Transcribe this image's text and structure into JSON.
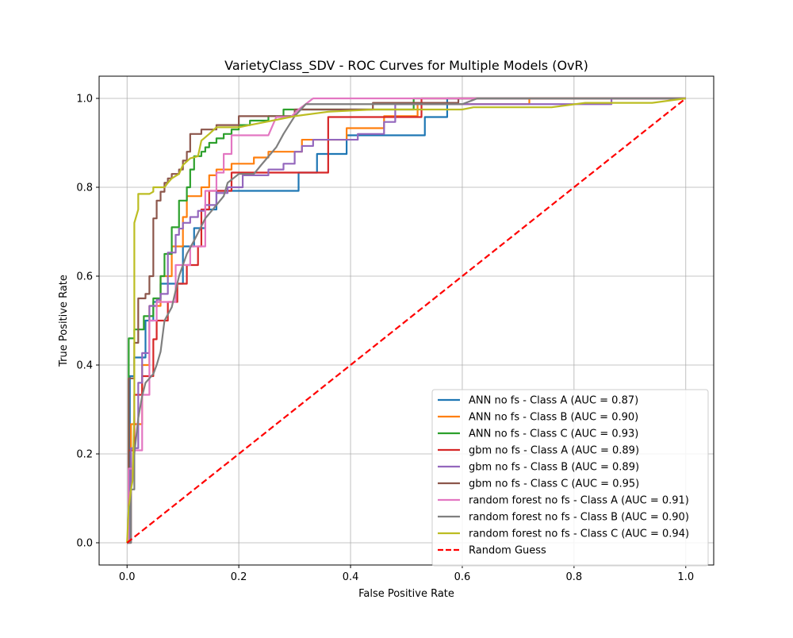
{
  "chart_data": {
    "type": "line",
    "title": "VarietyClass_SDV - ROC Curves for Multiple Models (OvR)",
    "xlabel": "False Positive Rate",
    "ylabel": "True Positive Rate",
    "xlim": [
      -0.05,
      1.05
    ],
    "ylim": [
      -0.05,
      1.05
    ],
    "xticks": [
      0.0,
      0.2,
      0.4,
      0.6,
      0.8,
      1.0
    ],
    "yticks": [
      0.0,
      0.2,
      0.4,
      0.6,
      0.8,
      1.0
    ],
    "xtick_labels": [
      "0.0",
      "0.2",
      "0.4",
      "0.6",
      "0.8",
      "1.0"
    ],
    "ytick_labels": [
      "0.0",
      "0.2",
      "0.4",
      "0.6",
      "0.8",
      "1.0"
    ],
    "grid": true,
    "legend_position": "lower-right",
    "series": [
      {
        "name": "ANN no fs - Class A (AUC = 0.87)",
        "color": "#1f77b4",
        "dash": "solid",
        "x": [
          0,
          0.005,
          0.005,
          0.013,
          0.013,
          0.033,
          0.033,
          0.047,
          0.047,
          0.06,
          0.06,
          0.1,
          0.1,
          0.12,
          0.12,
          0.14,
          0.14,
          0.16,
          0.16,
          0.307,
          0.307,
          0.34,
          0.34,
          0.393,
          0.393,
          0.533,
          0.533,
          0.573,
          0.573,
          1.0
        ],
        "y": [
          0,
          0,
          0.375,
          0.375,
          0.417,
          0.417,
          0.5,
          0.5,
          0.542,
          0.542,
          0.583,
          0.583,
          0.667,
          0.667,
          0.708,
          0.708,
          0.75,
          0.75,
          0.792,
          0.792,
          0.833,
          0.833,
          0.875,
          0.875,
          0.917,
          0.917,
          0.958,
          0.958,
          1.0,
          1.0
        ]
      },
      {
        "name": "ANN no fs - Class B (AUC = 0.90)",
        "color": "#ff7f0e",
        "dash": "solid",
        "x": [
          0,
          0.007,
          0.007,
          0.027,
          0.027,
          0.04,
          0.04,
          0.06,
          0.06,
          0.08,
          0.08,
          0.1,
          0.1,
          0.107,
          0.107,
          0.133,
          0.133,
          0.147,
          0.147,
          0.16,
          0.16,
          0.187,
          0.187,
          0.227,
          0.227,
          0.253,
          0.253,
          0.313,
          0.313,
          0.393,
          0.393,
          0.46,
          0.46,
          0.52,
          0.52,
          0.72,
          0.72,
          1.0
        ],
        "y": [
          0,
          0,
          0.267,
          0.267,
          0.4,
          0.4,
          0.533,
          0.533,
          0.6,
          0.6,
          0.667,
          0.667,
          0.733,
          0.733,
          0.78,
          0.78,
          0.8,
          0.8,
          0.827,
          0.827,
          0.84,
          0.84,
          0.853,
          0.853,
          0.867,
          0.867,
          0.88,
          0.88,
          0.907,
          0.907,
          0.933,
          0.933,
          0.96,
          0.96,
          0.987,
          0.987,
          1.0,
          1.0
        ]
      },
      {
        "name": "ANN no fs - Class C (AUC = 0.93)",
        "color": "#2ca02c",
        "dash": "solid",
        "x": [
          0,
          0.003,
          0.003,
          0.013,
          0.013,
          0.03,
          0.03,
          0.047,
          0.047,
          0.06,
          0.06,
          0.067,
          0.067,
          0.08,
          0.08,
          0.093,
          0.093,
          0.107,
          0.107,
          0.113,
          0.113,
          0.12,
          0.12,
          0.133,
          0.133,
          0.14,
          0.14,
          0.147,
          0.147,
          0.16,
          0.16,
          0.173,
          0.173,
          0.187,
          0.187,
          0.2,
          0.2,
          0.22,
          0.22,
          0.253,
          0.253,
          0.28,
          0.28,
          0.513,
          0.513,
          1.0
        ],
        "y": [
          0,
          0,
          0.46,
          0.46,
          0.48,
          0.48,
          0.51,
          0.51,
          0.55,
          0.55,
          0.6,
          0.6,
          0.65,
          0.65,
          0.71,
          0.71,
          0.77,
          0.77,
          0.8,
          0.8,
          0.84,
          0.84,
          0.87,
          0.87,
          0.88,
          0.88,
          0.89,
          0.89,
          0.9,
          0.9,
          0.91,
          0.91,
          0.92,
          0.92,
          0.93,
          0.93,
          0.94,
          0.94,
          0.95,
          0.95,
          0.96,
          0.96,
          0.975,
          0.975,
          1.0,
          1.0
        ]
      },
      {
        "name": "gbm no fs - Class A (AUC = 0.89)",
        "color": "#d62728",
        "dash": "solid",
        "x": [
          0,
          0.003,
          0.003,
          0.013,
          0.013,
          0.027,
          0.027,
          0.047,
          0.047,
          0.053,
          0.053,
          0.073,
          0.073,
          0.09,
          0.09,
          0.107,
          0.107,
          0.127,
          0.127,
          0.133,
          0.133,
          0.147,
          0.147,
          0.187,
          0.187,
          0.24,
          0.24,
          0.28,
          0.28,
          0.36,
          0.36,
          0.527,
          0.527,
          1.0
        ],
        "y": [
          0,
          0,
          0.208,
          0.208,
          0.333,
          0.333,
          0.375,
          0.375,
          0.458,
          0.458,
          0.5,
          0.5,
          0.542,
          0.542,
          0.583,
          0.583,
          0.625,
          0.625,
          0.667,
          0.667,
          0.75,
          0.75,
          0.792,
          0.792,
          0.833,
          0.833,
          0.833,
          0.833,
          0.833,
          0.833,
          0.958,
          0.958,
          1.0,
          1.0
        ]
      },
      {
        "name": "gbm no fs - Class B (AUC = 0.89)",
        "color": "#9467bd",
        "dash": "solid",
        "x": [
          0,
          0.007,
          0.007,
          0.02,
          0.02,
          0.027,
          0.027,
          0.04,
          0.04,
          0.053,
          0.053,
          0.06,
          0.06,
          0.073,
          0.073,
          0.087,
          0.087,
          0.093,
          0.093,
          0.1,
          0.1,
          0.113,
          0.113,
          0.127,
          0.127,
          0.14,
          0.14,
          0.16,
          0.16,
          0.18,
          0.18,
          0.207,
          0.207,
          0.253,
          0.253,
          0.28,
          0.28,
          0.3,
          0.3,
          0.313,
          0.313,
          0.333,
          0.333,
          0.413,
          0.413,
          0.46,
          0.46,
          0.48,
          0.48,
          0.867,
          0.867,
          1.0
        ],
        "y": [
          0,
          0,
          0.213,
          0.213,
          0.36,
          0.36,
          0.427,
          0.427,
          0.533,
          0.533,
          0.547,
          0.547,
          0.56,
          0.56,
          0.653,
          0.653,
          0.693,
          0.693,
          0.707,
          0.707,
          0.72,
          0.72,
          0.733,
          0.733,
          0.747,
          0.747,
          0.76,
          0.76,
          0.787,
          0.787,
          0.8,
          0.8,
          0.827,
          0.827,
          0.84,
          0.84,
          0.853,
          0.853,
          0.88,
          0.88,
          0.893,
          0.893,
          0.907,
          0.907,
          0.92,
          0.92,
          0.947,
          0.947,
          0.987,
          0.987,
          1.0,
          1.0
        ]
      },
      {
        "name": "gbm no fs - Class C (AUC = 0.95)",
        "color": "#8c564b",
        "dash": "solid",
        "x": [
          0,
          0.003,
          0.003,
          0.013,
          0.013,
          0.02,
          0.02,
          0.033,
          0.033,
          0.04,
          0.04,
          0.047,
          0.047,
          0.053,
          0.053,
          0.06,
          0.06,
          0.067,
          0.067,
          0.073,
          0.073,
          0.08,
          0.08,
          0.093,
          0.093,
          0.1,
          0.1,
          0.107,
          0.107,
          0.113,
          0.113,
          0.133,
          0.133,
          0.16,
          0.16,
          0.2,
          0.2,
          0.3,
          0.3,
          0.44,
          0.44,
          0.593,
          0.593,
          1.0
        ],
        "y": [
          0,
          0,
          0.37,
          0.37,
          0.45,
          0.45,
          0.55,
          0.55,
          0.56,
          0.56,
          0.6,
          0.6,
          0.73,
          0.73,
          0.77,
          0.77,
          0.79,
          0.79,
          0.81,
          0.81,
          0.82,
          0.82,
          0.83,
          0.83,
          0.84,
          0.84,
          0.86,
          0.86,
          0.88,
          0.88,
          0.92,
          0.92,
          0.93,
          0.93,
          0.94,
          0.94,
          0.96,
          0.96,
          0.975,
          0.975,
          0.99,
          0.99,
          1.0,
          1.0
        ]
      },
      {
        "name": "random forest no fs - Class A (AUC = 0.91)",
        "color": "#e377c2",
        "dash": "solid",
        "x": [
          0,
          0.003,
          0.003,
          0.013,
          0.013,
          0.027,
          0.027,
          0.04,
          0.04,
          0.053,
          0.053,
          0.06,
          0.06,
          0.087,
          0.087,
          0.113,
          0.113,
          0.127,
          0.127,
          0.14,
          0.14,
          0.16,
          0.16,
          0.173,
          0.173,
          0.187,
          0.187,
          0.24,
          0.253,
          0.267,
          0.293,
          0.307,
          0.333,
          1.0
        ],
        "y": [
          0,
          0,
          0.167,
          0.167,
          0.208,
          0.208,
          0.333,
          0.333,
          0.5,
          0.5,
          0.542,
          0.542,
          0.542,
          0.542,
          0.625,
          0.625,
          0.667,
          0.667,
          0.667,
          0.667,
          0.792,
          0.792,
          0.833,
          0.833,
          0.875,
          0.875,
          0.917,
          0.917,
          0.917,
          0.958,
          0.958,
          0.975,
          1.0,
          1.0
        ]
      },
      {
        "name": "random forest no fs - Class B (AUC = 0.90)",
        "color": "#7f7f7f",
        "dash": "solid",
        "x": [
          0,
          0.007,
          0.007,
          0.013,
          0.013,
          0.02,
          0.027,
          0.033,
          0.04,
          0.047,
          0.053,
          0.06,
          0.067,
          0.08,
          0.093,
          0.107,
          0.12,
          0.14,
          0.16,
          0.173,
          0.18,
          0.2,
          0.227,
          0.24,
          0.267,
          0.28,
          0.3,
          0.32,
          0.333,
          0.353,
          0.393,
          0.44,
          0.52,
          0.56,
          0.6,
          0.627,
          0.787,
          0.867,
          1.0
        ],
        "y": [
          0,
          0,
          0.12,
          0.12,
          0.2,
          0.28,
          0.33,
          0.36,
          0.37,
          0.38,
          0.4,
          0.43,
          0.5,
          0.53,
          0.6,
          0.65,
          0.68,
          0.73,
          0.76,
          0.78,
          0.81,
          0.83,
          0.83,
          0.85,
          0.89,
          0.92,
          0.96,
          0.987,
          0.987,
          0.987,
          0.987,
          0.987,
          0.987,
          0.987,
          0.987,
          1.0,
          1.0,
          1.0,
          1.0
        ]
      },
      {
        "name": "random forest no fs - Class C (AUC = 0.94)",
        "color": "#bcbd22",
        "dash": "solid",
        "x": [
          0,
          0.003,
          0.007,
          0.01,
          0.013,
          0.013,
          0.02,
          0.02,
          0.04,
          0.047,
          0.047,
          0.067,
          0.073,
          0.08,
          0.093,
          0.1,
          0.113,
          0.127,
          0.133,
          0.147,
          0.16,
          0.2,
          0.22,
          0.26,
          0.3,
          0.36,
          0.44,
          0.52,
          0.6,
          0.62,
          0.76,
          0.82,
          0.88,
          0.94,
          1.0
        ],
        "y": [
          0,
          0.08,
          0.12,
          0.14,
          0.3,
          0.72,
          0.75,
          0.785,
          0.785,
          0.79,
          0.8,
          0.8,
          0.81,
          0.82,
          0.83,
          0.85,
          0.865,
          0.87,
          0.905,
          0.92,
          0.935,
          0.935,
          0.94,
          0.95,
          0.96,
          0.97,
          0.975,
          0.975,
          0.975,
          0.98,
          0.98,
          0.99,
          0.99,
          0.99,
          1.0
        ]
      },
      {
        "name": "Random Guess",
        "color": "#ff0000",
        "dash": "dashed",
        "x": [
          0,
          1
        ],
        "y": [
          0,
          1
        ]
      }
    ]
  }
}
